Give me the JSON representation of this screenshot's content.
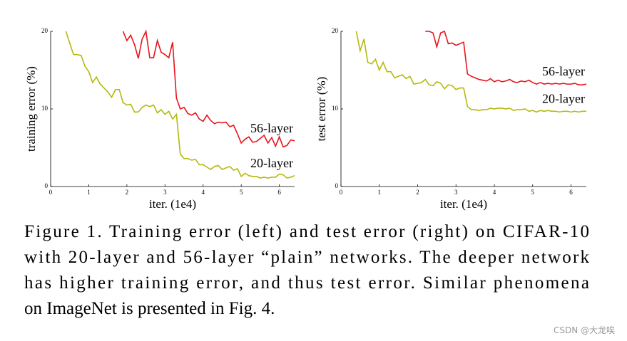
{
  "chart_data": [
    {
      "type": "line",
      "ylabel": "training error (%)",
      "xlabel": "iter. (1e4)",
      "xlim": [
        0,
        6.4
      ],
      "xticks": [
        0,
        1,
        2,
        3,
        4,
        5,
        6
      ],
      "ylim": [
        0,
        20
      ],
      "yticks": [
        0,
        10,
        20
      ],
      "x": [
        0.4,
        0.5,
        0.6,
        0.7,
        0.8,
        0.9,
        1.0,
        1.1,
        1.2,
        1.3,
        1.4,
        1.5,
        1.6,
        1.7,
        1.8,
        1.9,
        2.0,
        2.1,
        2.2,
        2.3,
        2.4,
        2.5,
        2.6,
        2.7,
        2.8,
        2.9,
        3.0,
        3.1,
        3.2,
        3.3,
        3.4,
        3.5,
        3.6,
        3.7,
        3.8,
        3.9,
        4.0,
        4.1,
        4.2,
        4.3,
        4.4,
        4.5,
        4.6,
        4.7,
        4.8,
        4.9,
        5.0,
        5.1,
        5.2,
        5.3,
        5.4,
        5.5,
        5.6,
        5.7,
        5.8,
        5.9,
        6.0,
        6.1,
        6.2,
        6.3,
        6.4
      ],
      "series": [
        {
          "name": "56-layer",
          "color": "#e8141c",
          "values": [
            null,
            null,
            null,
            null,
            null,
            null,
            null,
            null,
            null,
            null,
            null,
            null,
            null,
            null,
            null,
            20,
            18.8,
            19.5,
            18.3,
            16.5,
            19,
            20,
            16.6,
            16.6,
            18.8,
            17.3,
            17,
            16.6,
            18.6,
            11.4,
            10,
            10.2,
            9.4,
            9.2,
            9.5,
            8.7,
            8.4,
            9.2,
            8.5,
            8.1,
            8.3,
            8.2,
            8.3,
            7.7,
            7.9,
            6.8,
            5.6,
            6.1,
            6.4,
            5.7,
            5.8,
            6.2,
            6.6,
            5.6,
            6.3,
            5.2,
            6.4,
            5.1,
            5.3,
            6.0,
            5.9
          ]
        },
        {
          "name": "20-layer",
          "color": "#b5b90a",
          "values": [
            20,
            18.5,
            17,
            17,
            16.9,
            15.5,
            14.8,
            13.4,
            14.1,
            13.2,
            12.7,
            12.2,
            11.5,
            12.5,
            12.5,
            10.8,
            10.5,
            10.6,
            9.6,
            9.6,
            10.2,
            10.5,
            10.3,
            10.5,
            9.5,
            9.9,
            9.3,
            9.7,
            8.7,
            9.3,
            4.2,
            3.6,
            3.6,
            3.4,
            3.5,
            2.8,
            2.8,
            2.5,
            2.2,
            2.6,
            2.7,
            2.2,
            2.4,
            2.6,
            2.1,
            2.3,
            1.3,
            1.7,
            1.4,
            1.3,
            1.3,
            1.1,
            1.2,
            1.1,
            1.2,
            1.2,
            1.6,
            1.5,
            1.1,
            1.2,
            1.4
          ]
        }
      ]
    },
    {
      "type": "line",
      "ylabel": "test error (%)",
      "xlabel": "iter. (1e4)",
      "xlim": [
        0,
        6.4
      ],
      "xticks": [
        0,
        1,
        2,
        3,
        4,
        5,
        6
      ],
      "ylim": [
        0,
        20
      ],
      "yticks": [
        0,
        10,
        20
      ],
      "x": [
        0.4,
        0.5,
        0.6,
        0.7,
        0.8,
        0.9,
        1.0,
        1.1,
        1.2,
        1.3,
        1.4,
        1.5,
        1.6,
        1.7,
        1.8,
        1.9,
        2.0,
        2.1,
        2.2,
        2.3,
        2.4,
        2.5,
        2.6,
        2.7,
        2.8,
        2.9,
        3.0,
        3.1,
        3.2,
        3.3,
        3.4,
        3.5,
        3.6,
        3.7,
        3.8,
        3.9,
        4.0,
        4.1,
        4.2,
        4.3,
        4.4,
        4.5,
        4.6,
        4.7,
        4.8,
        4.9,
        5.0,
        5.1,
        5.2,
        5.3,
        5.4,
        5.5,
        5.6,
        5.7,
        5.8,
        5.9,
        6.0,
        6.1,
        6.2,
        6.3,
        6.4
      ],
      "series": [
        {
          "name": "56-layer",
          "color": "#e8141c",
          "values": [
            null,
            null,
            null,
            null,
            null,
            null,
            null,
            null,
            null,
            null,
            null,
            null,
            null,
            null,
            null,
            null,
            null,
            null,
            20,
            20,
            19.8,
            18,
            19.8,
            20,
            18.4,
            18.5,
            18.2,
            18.4,
            18.6,
            14.5,
            14.2,
            14,
            13.8,
            13.7,
            13.6,
            13.9,
            13.5,
            13.7,
            13.5,
            13.6,
            13.8,
            13.5,
            13.4,
            13.6,
            13.5,
            13.7,
            13.4,
            13.2,
            13.4,
            13.2,
            13.3,
            13.2,
            13.3,
            13.2,
            13.3,
            13.2,
            13.2,
            13.3,
            13.1,
            13.1,
            13.2
          ]
        },
        {
          "name": "20-layer",
          "color": "#b5b90a",
          "values": [
            20,
            17.5,
            19,
            16,
            15.8,
            16.4,
            15,
            16,
            14.8,
            14.8,
            14,
            14.2,
            14.4,
            13.9,
            14.2,
            13.2,
            13.3,
            13.4,
            13.8,
            13.1,
            13,
            13.5,
            13.3,
            12.6,
            13.1,
            13,
            12.5,
            12.7,
            12.7,
            10.3,
            9.9,
            9.9,
            9.8,
            9.9,
            9.9,
            10.1,
            10,
            10.1,
            10.1,
            10,
            10.1,
            9.8,
            9.9,
            9.9,
            10,
            9.7,
            9.8,
            9.6,
            9.8,
            9.7,
            9.8,
            9.7,
            9.7,
            9.6,
            9.7,
            9.7,
            9.6,
            9.7,
            9.6,
            9.7,
            9.7
          ]
        }
      ]
    }
  ],
  "caption": [
    "Figure 1. Training error (left) and test error (right) on CIFAR-10",
    "with 20-layer and 56-layer “plain” networks. The deeper network",
    "has higher training error, and thus test error.  Similar phenomena",
    "on ImageNet is presented in Fig. 4."
  ],
  "watermark": "CSDN @大龙唉"
}
